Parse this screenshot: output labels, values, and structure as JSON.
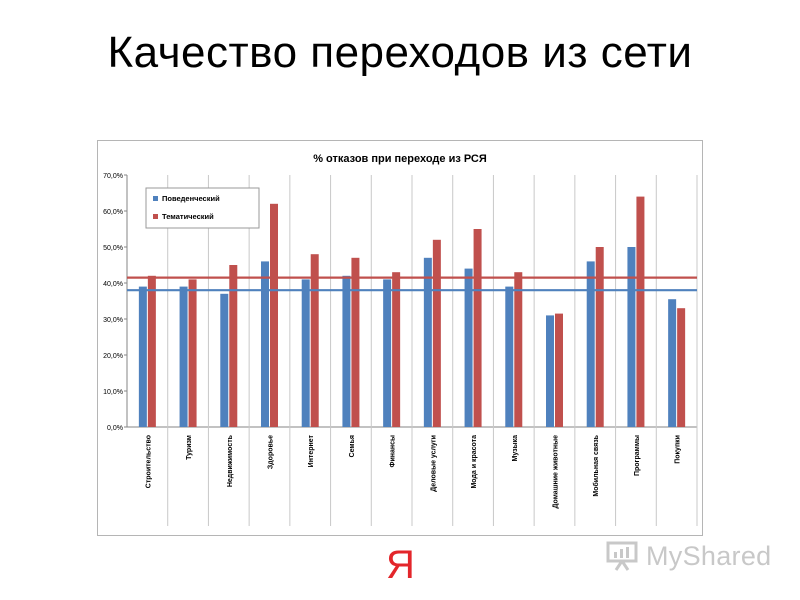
{
  "slide": {
    "title": "Качество переходов из сети",
    "logo_text": "Я",
    "watermark_text": "MyShared"
  },
  "colors": {
    "series_1": "#4f81bd",
    "series_2": "#c0504d",
    "avg_1": "#4f81bd",
    "avg_2": "#c0504d",
    "logo": "#e3262b"
  },
  "chart_data": {
    "type": "bar",
    "title": "% отказов при переходе из РСЯ",
    "xlabel": "",
    "ylabel": "",
    "ylim": [
      0,
      70
    ],
    "yticks": [
      "0,0%",
      "10,0%",
      "20,0%",
      "30,0%",
      "40,0%",
      "50,0%",
      "60,0%",
      "70,0%"
    ],
    "grid": "vertical category separators",
    "legend_position": "top-left",
    "categories": [
      "Строительство",
      "Туризм",
      "Недвижимость",
      "Здоровье",
      "Интернет",
      "Семья",
      "Финансы",
      "Деловые услуги",
      "Мода и красота",
      "Музыка",
      "Домашние животные",
      "Мобильная связь",
      "Программы",
      "Покупки"
    ],
    "series": [
      {
        "name": "Поведенческий",
        "values": [
          39,
          39,
          37,
          46,
          41,
          42,
          41,
          47,
          44,
          39,
          31,
          46,
          50,
          35.5
        ]
      },
      {
        "name": "Тематический",
        "values": [
          42,
          41,
          45,
          62,
          48,
          47,
          43,
          52,
          55,
          43,
          31.5,
          50,
          64,
          33
        ]
      }
    ],
    "reference_lines": [
      {
        "series": "Поведенческий",
        "value": 38
      },
      {
        "series": "Тематический",
        "value": 41.5
      }
    ]
  }
}
